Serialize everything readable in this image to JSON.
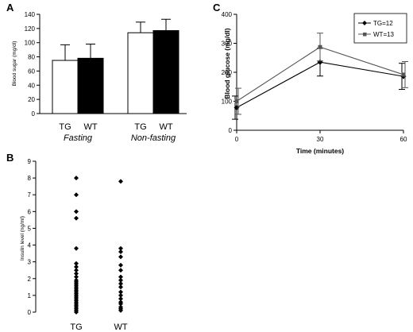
{
  "panels": {
    "a": "A",
    "b": "B",
    "c": "C"
  },
  "chart_data": [
    {
      "panel": "A",
      "type": "bar",
      "ylabel": "Blood sugar (mg/dl)",
      "ylim": [
        0,
        140
      ],
      "yticks": [
        0,
        20,
        40,
        60,
        80,
        100,
        120,
        140
      ],
      "groups": [
        {
          "name": "Fasting",
          "bar_labels": [
            "TG",
            "WT"
          ],
          "values": [
            75,
            78
          ],
          "errors": [
            22,
            20
          ]
        },
        {
          "name": "Non-fasting",
          "bar_labels": [
            "TG",
            "WT"
          ],
          "values": [
            114,
            117
          ],
          "errors": [
            15,
            16
          ]
        }
      ],
      "series_colors": {
        "TG": "#ffffff",
        "WT": "#000000"
      }
    },
    {
      "panel": "C",
      "type": "line",
      "ylabel": "Blood glucose (mg/dl)",
      "xlabel": "Time (minutes)",
      "x": [
        0,
        30,
        60
      ],
      "ylim": [
        0,
        400
      ],
      "yticks": [
        0,
        100,
        200,
        300,
        400
      ],
      "xticks": [
        0,
        30,
        60
      ],
      "legend_position": "top-right",
      "series": [
        {
          "name": "TG=12",
          "marker": "diamond",
          "color": "#000000",
          "values": [
            78,
            235,
            186
          ],
          "errors": [
            40,
            48,
            45
          ]
        },
        {
          "name": "WT=13",
          "marker": "square",
          "color": "#555555",
          "values": [
            100,
            287,
            192
          ],
          "errors": [
            45,
            48,
            45
          ]
        }
      ]
    },
    {
      "panel": "B",
      "type": "scatter",
      "ylabel": "Insulin level (ng/ml)",
      "ylim": [
        0,
        9
      ],
      "yticks": [
        0,
        1,
        2,
        3,
        4,
        5,
        6,
        7,
        8,
        9
      ],
      "categories": [
        "TG",
        "WT"
      ],
      "points": {
        "TG": [
          8.0,
          7.0,
          6.0,
          5.6,
          3.8,
          2.9,
          2.7,
          2.5,
          2.3,
          2.1,
          1.9,
          1.8,
          1.7,
          1.6,
          1.5,
          1.4,
          1.3,
          1.2,
          1.1,
          1.0,
          0.9,
          0.8,
          0.7,
          0.6,
          0.5,
          0.4,
          0.3,
          0.2,
          0.1,
          0.0
        ],
        "WT": [
          7.8,
          3.8,
          3.6,
          3.3,
          2.8,
          2.5,
          2.1,
          1.9,
          1.7,
          1.5,
          1.2,
          1.0,
          0.8,
          0.6,
          0.5,
          0.3,
          0.2,
          0.1
        ]
      }
    }
  ]
}
